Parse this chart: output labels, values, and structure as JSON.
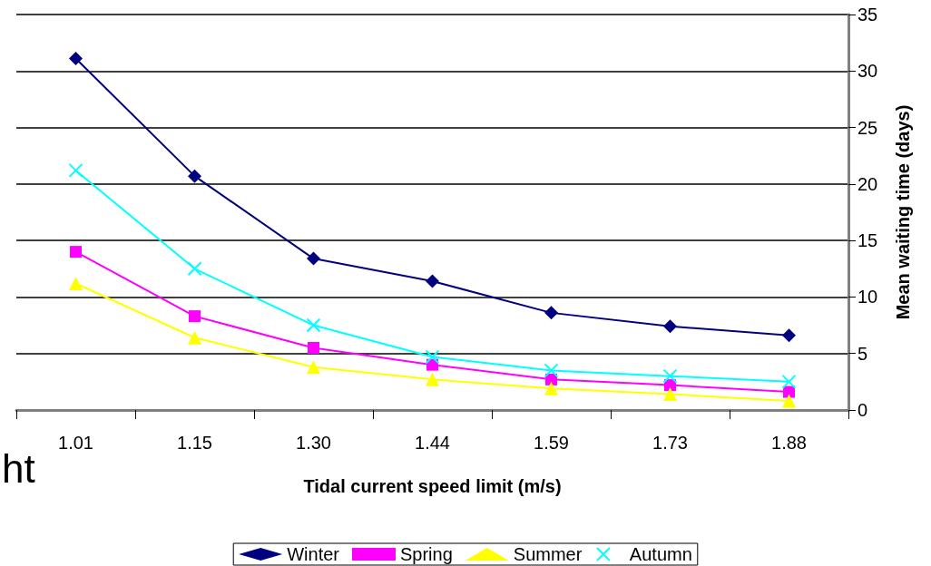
{
  "chart_data": {
    "type": "line",
    "xlabel": "Tidal current speed limit (m/s)",
    "ylabel": "Mean waiting time (days)",
    "categories": [
      "1.01",
      "1.15",
      "1.30",
      "1.44",
      "1.59",
      "1.73",
      "1.88"
    ],
    "series": [
      {
        "name": "Winter",
        "color": "#000080",
        "marker": "diamond",
        "values": [
          31.1,
          20.7,
          13.4,
          11.4,
          8.6,
          7.4,
          6.6
        ]
      },
      {
        "name": "Spring",
        "color": "#ff00ff",
        "marker": "square",
        "values": [
          14.0,
          8.3,
          5.5,
          4.0,
          2.7,
          2.2,
          1.6
        ]
      },
      {
        "name": "Summer",
        "color": "#ffff00",
        "marker": "triangle",
        "values": [
          11.2,
          6.4,
          3.8,
          2.7,
          1.9,
          1.4,
          0.8
        ]
      },
      {
        "name": "Autumn",
        "color": "#00ffff",
        "marker": "cross",
        "values": [
          21.2,
          12.5,
          7.5,
          4.7,
          3.5,
          3.0,
          2.5
        ]
      }
    ],
    "ylim": [
      0,
      35
    ],
    "yticks": [
      0,
      5,
      10,
      15,
      20,
      25,
      30,
      35
    ],
    "grid": "y",
    "legend": "bottom",
    "annotations": [
      "ht"
    ]
  }
}
